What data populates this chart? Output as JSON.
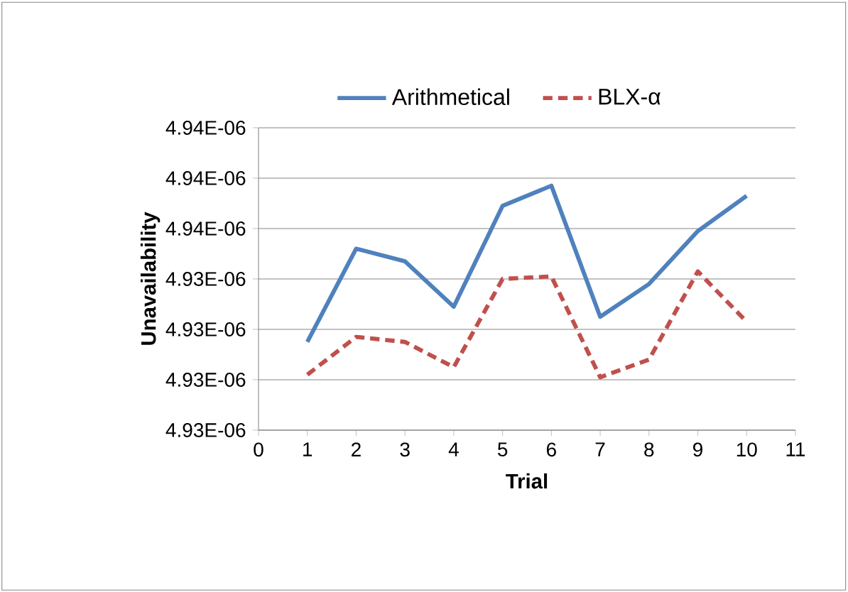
{
  "chart_data": {
    "type": "line",
    "xlabel": "Trial",
    "ylabel": "Unavailability",
    "x": [
      1,
      2,
      3,
      4,
      5,
      6,
      7,
      8,
      9,
      10
    ],
    "series": [
      {
        "name": "Arithmetical",
        "color": "#4f81bd",
        "line_style": "solid",
        "values": [
          4.9315e-06,
          4.9352e-06,
          4.9347e-06,
          4.9329e-06,
          4.9369e-06,
          4.9377e-06,
          4.9325e-06,
          4.9338e-06,
          4.9359e-06,
          4.9373e-06
        ]
      },
      {
        "name": "BLX-α",
        "color": "#c0504d",
        "line_style": "dashed",
        "values": [
          4.9302e-06,
          4.9317e-06,
          4.9315e-06,
          4.9305e-06,
          4.934e-06,
          4.9341e-06,
          4.9301e-06,
          4.9308e-06,
          4.9343e-06,
          4.9323e-06
        ]
      }
    ],
    "xlim": [
      0,
      11
    ],
    "xticks": [
      0,
      1,
      2,
      3,
      4,
      5,
      6,
      7,
      8,
      9,
      10,
      11
    ],
    "ylim": [
      4.928e-06,
      4.94e-06
    ],
    "yticks": [
      {
        "value": 4.928e-06,
        "label": "4.93E-06"
      },
      {
        "value": 4.93e-06,
        "label": "4.93E-06"
      },
      {
        "value": 4.932e-06,
        "label": "4.93E-06"
      },
      {
        "value": 4.934e-06,
        "label": "4.93E-06"
      },
      {
        "value": 4.936e-06,
        "label": "4.94E-06"
      },
      {
        "value": 4.938e-06,
        "label": "4.94E-06"
      },
      {
        "value": 4.94e-06,
        "label": "4.94E-06"
      }
    ],
    "grid": "y",
    "legend": "top"
  }
}
